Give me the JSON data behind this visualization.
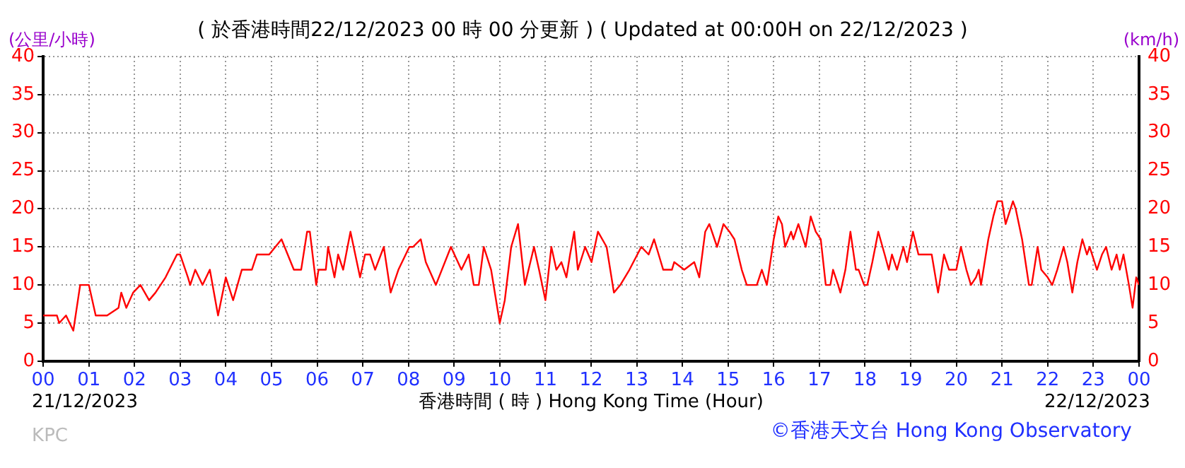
{
  "chart_data": {
    "type": "line",
    "title": "( 於香港時間22/12/2023 00 時 00 分更新 ) ( Updated at 00:00H on 22/12/2023 )",
    "ylabel": "(公里/小時)",
    "y2label": "(km/h)",
    "xlabel": "香港時間 ( 時 ) Hong Kong Time (Hour)",
    "annotations": [
      "21/12/2023",
      "22/12/2023",
      "KPC",
      "©香港天文台 Hong Kong Observatory"
    ],
    "xlim": [
      0,
      24
    ],
    "xticks": [
      {
        "value": 0,
        "label": "00"
      },
      {
        "value": 1,
        "label": "01"
      },
      {
        "value": 2,
        "label": "02"
      },
      {
        "value": 3,
        "label": "03"
      },
      {
        "value": 4,
        "label": "04"
      },
      {
        "value": 5,
        "label": "05"
      },
      {
        "value": 6,
        "label": "06"
      },
      {
        "value": 7,
        "label": "07"
      },
      {
        "value": 8,
        "label": "08"
      },
      {
        "value": 9,
        "label": "09"
      },
      {
        "value": 10,
        "label": "10"
      },
      {
        "value": 11,
        "label": "11"
      },
      {
        "value": 12,
        "label": "12"
      },
      {
        "value": 13,
        "label": "13"
      },
      {
        "value": 14,
        "label": "14"
      },
      {
        "value": 15,
        "label": "15"
      },
      {
        "value": 16,
        "label": "16"
      },
      {
        "value": 17,
        "label": "17"
      },
      {
        "value": 18,
        "label": "18"
      },
      {
        "value": 19,
        "label": "19"
      },
      {
        "value": 20,
        "label": "20"
      },
      {
        "value": 21,
        "label": "21"
      },
      {
        "value": 22,
        "label": "22"
      },
      {
        "value": 23,
        "label": "23"
      },
      {
        "value": 24,
        "label": "00"
      }
    ],
    "ylim": [
      0,
      40
    ],
    "yticks": [
      0,
      5,
      10,
      15,
      20,
      25,
      30,
      35,
      40
    ],
    "y2lim": [
      0,
      40
    ],
    "y2ticks": [
      0,
      5,
      10,
      15,
      20,
      25,
      30,
      35,
      40
    ],
    "grid": true,
    "marker": "none",
    "line_style": "solid",
    "legend": false,
    "series": [
      {
        "color": "#ff0000",
        "x": [
          0,
          0.3,
          0.35,
          0.5,
          0.66,
          0.81,
          1.0,
          1.15,
          1.4,
          1.65,
          1.71,
          1.82,
          1.97,
          2.13,
          2.32,
          2.46,
          2.68,
          2.93,
          3.0,
          3.17,
          3.22,
          3.33,
          3.49,
          3.65,
          3.83,
          4.0,
          4.16,
          4.35,
          4.57,
          4.68,
          4.95,
          5.22,
          5.49,
          5.65,
          5.78,
          5.84,
          5.98,
          6.03,
          6.19,
          6.24,
          6.38,
          6.46,
          6.57,
          6.73,
          6.94,
          7.05,
          7.16,
          7.27,
          7.46,
          7.61,
          7.78,
          8.02,
          8.1,
          8.27,
          8.38,
          8.6,
          8.93,
          9.16,
          9.32,
          9.43,
          9.54,
          9.65,
          9.81,
          10.0,
          10.11,
          10.25,
          10.4,
          10.55,
          10.75,
          10.86,
          11.0,
          11.13,
          11.24,
          11.35,
          11.46,
          11.54,
          11.63,
          11.71,
          11.87,
          12.01,
          12.15,
          12.34,
          12.5,
          12.64,
          12.84,
          13.1,
          13.26,
          13.38,
          13.48,
          13.58,
          13.77,
          13.82,
          14.04,
          14.26,
          14.37,
          14.5,
          14.59,
          14.76,
          14.9,
          15.03,
          15.14,
          15.3,
          15.41,
          15.63,
          15.74,
          15.85,
          16.0,
          16.1,
          16.18,
          16.25,
          16.38,
          16.43,
          16.54,
          16.7,
          16.81,
          16.92,
          17.03,
          17.14,
          17.24,
          17.3,
          17.41,
          17.46,
          17.57,
          17.68,
          17.8,
          17.86,
          17.98,
          18.05,
          18.16,
          18.29,
          18.43,
          18.52,
          18.59,
          18.7,
          18.84,
          18.92,
          19.05,
          19.17,
          19.46,
          19.6,
          19.73,
          19.84,
          20.0,
          20.1,
          20.22,
          20.32,
          20.43,
          20.49,
          20.54,
          20.7,
          20.81,
          20.9,
          21.0,
          21.08,
          21.24,
          21.3,
          21.44,
          21.59,
          21.65,
          21.78,
          21.86,
          22.0,
          22.1,
          22.21,
          22.35,
          22.43,
          22.54,
          22.65,
          22.76,
          22.86,
          22.92,
          23.08,
          23.19,
          23.28,
          23.4,
          23.51,
          23.58,
          23.66,
          23.72,
          23.78,
          23.86,
          23.94,
          24.0
        ],
        "values": [
          6,
          6,
          5,
          6,
          4,
          10,
          10,
          6,
          6,
          7,
          9,
          7,
          9,
          10,
          8,
          9,
          11,
          14,
          14,
          11,
          10,
          12,
          10,
          12,
          6,
          11,
          8,
          12,
          12,
          14,
          14,
          16,
          12,
          12,
          17,
          17,
          10,
          12,
          12,
          15,
          11,
          14,
          12,
          17,
          11,
          14,
          14,
          12,
          15,
          9,
          12,
          15,
          15,
          16,
          13,
          10,
          15,
          12,
          14,
          10,
          10,
          15,
          12,
          5,
          8,
          15,
          18,
          10,
          15,
          12,
          8,
          15,
          12,
          13,
          11,
          14,
          17,
          12,
          15,
          13,
          17,
          15,
          9,
          10,
          12,
          15,
          14,
          16,
          14,
          12,
          12,
          13,
          12,
          13,
          11,
          17,
          18,
          15,
          18,
          17,
          16,
          12,
          10,
          10,
          12,
          10,
          16,
          19,
          18,
          15,
          17,
          16,
          18,
          15,
          19,
          17,
          16,
          10,
          10,
          12,
          10,
          9,
          12,
          17,
          12,
          12,
          10,
          10,
          13,
          17,
          14,
          12,
          14,
          12,
          15,
          13,
          17,
          14,
          14,
          9,
          14,
          12,
          12,
          15,
          12,
          10,
          11,
          12,
          10,
          16,
          19,
          21,
          21,
          18,
          21,
          20,
          16,
          10,
          10,
          15,
          12,
          11,
          10,
          12,
          15,
          13,
          9,
          13,
          16,
          14,
          15,
          12,
          14,
          15,
          12,
          14,
          12,
          14,
          12,
          10,
          7,
          11,
          10
        ]
      }
    ]
  }
}
